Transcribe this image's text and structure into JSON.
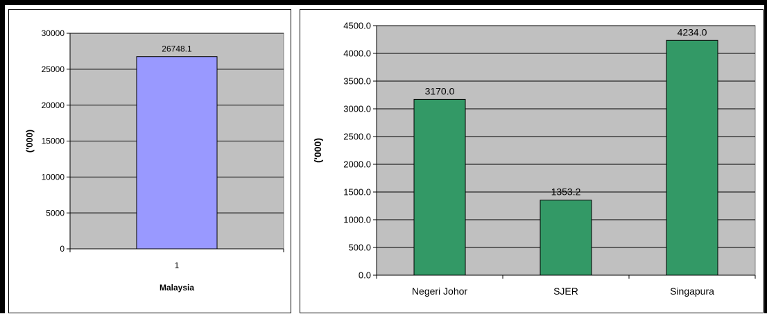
{
  "colors": {
    "plot_bg": "#c0c0c0",
    "malaysia_bar": "#9999ff",
    "region_bar": "#339966"
  },
  "chart_data": [
    {
      "type": "bar",
      "title": "",
      "categories": [
        "1"
      ],
      "values": [
        26748.1
      ],
      "data_labels": [
        "26748.1"
      ],
      "xlabel": "Malaysia",
      "ylabel": "('000)",
      "ylim": [
        0,
        30000
      ],
      "yticks": [
        "0",
        "5000",
        "10000",
        "15000",
        "20000",
        "25000",
        "30000"
      ],
      "grid": true
    },
    {
      "type": "bar",
      "title": "",
      "categories": [
        "Negeri Johor",
        "SJER",
        "Singapura"
      ],
      "values": [
        3170.0,
        1353.2,
        4234.0
      ],
      "data_labels": [
        "3170.0",
        "1353.2",
        "4234.0"
      ],
      "xlabel": "",
      "ylabel": "('000)",
      "ylim": [
        0,
        4500
      ],
      "yticks": [
        "0.0",
        "500.0",
        "1000.0",
        "1500.0",
        "2000.0",
        "2500.0",
        "3000.0",
        "3500.0",
        "4000.0",
        "4500.0"
      ],
      "grid": true
    }
  ]
}
